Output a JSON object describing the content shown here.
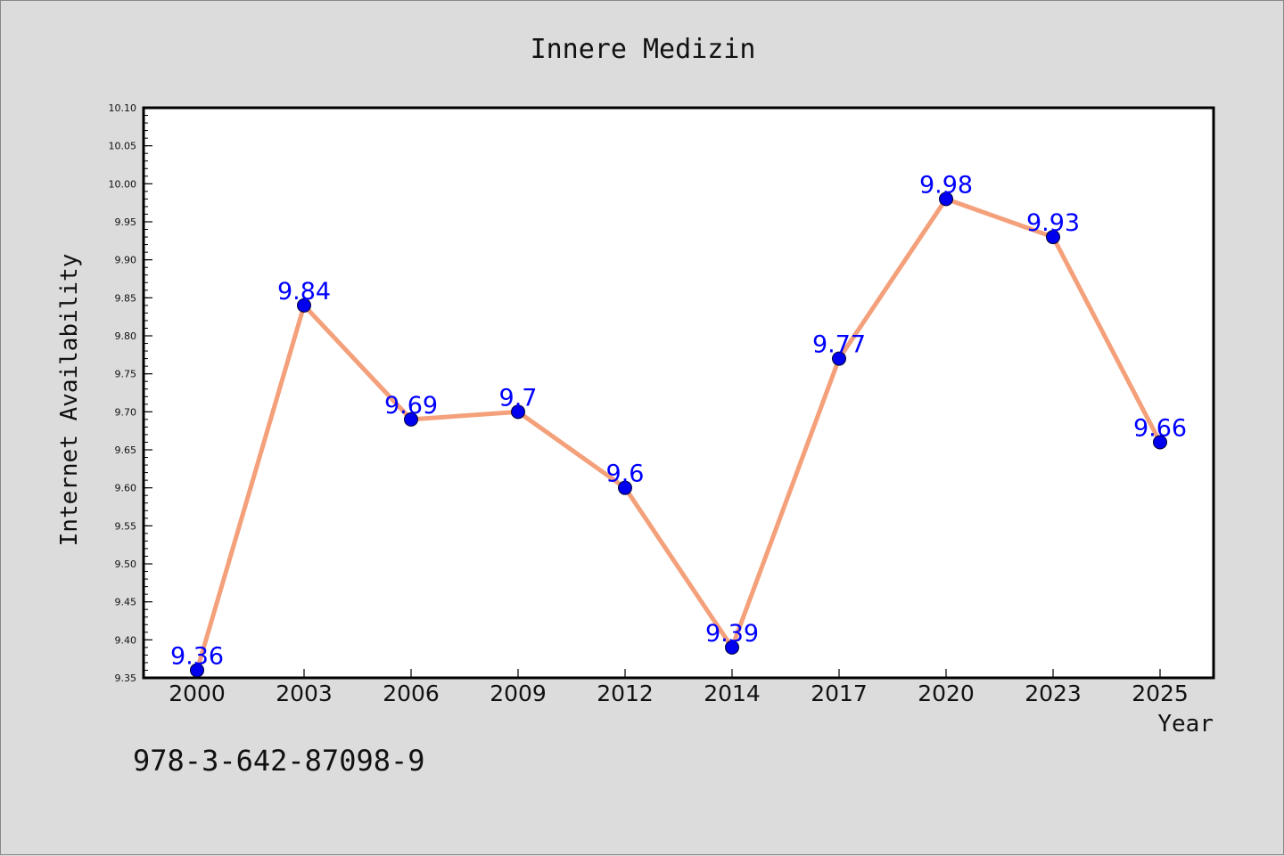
{
  "chart_data": {
    "type": "line",
    "title": "Innere Medizin",
    "xlabel": "Year",
    "ylabel": "Internet Availability",
    "x": [
      "2000",
      "2003",
      "2006",
      "2009",
      "2012",
      "2014",
      "2017",
      "2020",
      "2023",
      "2025"
    ],
    "series": [
      {
        "values": [
          9.36,
          9.84,
          9.69,
          9.7,
          9.6,
          9.39,
          9.77,
          9.98,
          9.93,
          9.66
        ],
        "labels": [
          "9.36",
          "9.84",
          "9.69",
          "9.7",
          "9.6",
          "9.39",
          "9.77",
          "9.98",
          "9.93",
          "9.66"
        ]
      }
    ],
    "ylim": [
      9.35,
      10.1
    ],
    "yticks": [
      "9.35",
      "9.40",
      "9.45",
      "9.50",
      "9.55",
      "9.60",
      "9.65",
      "9.70",
      "9.75",
      "9.80",
      "9.85",
      "9.90",
      "9.95",
      "10.00",
      "10.05",
      "10.10"
    ],
    "grid": false,
    "legend": "none",
    "colors": {
      "line": "#f4a07a",
      "marker": "#0000ee",
      "label": "#0000ff",
      "background": "#dcdcdc",
      "plot_background": "#ffffff"
    }
  },
  "footer": {
    "code": "978-3-642-87098-9"
  }
}
